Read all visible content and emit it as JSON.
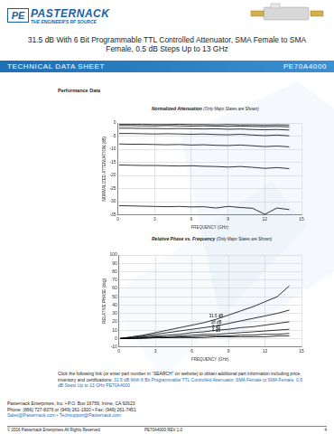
{
  "header": {
    "logo_mark": "PE",
    "logo_name": "PASTERNACK",
    "tagline": "THE ENGINEER'S RF SOURCE",
    "title": "31.5 dB With 6 Bit Programmable TTL Controlled Attenuator, SMA Female to SMA Female, 0.5 dB Steps Up to 13 GHz"
  },
  "banner": {
    "left": "TECHNICAL DATA SHEET",
    "right": "PE70A4000"
  },
  "section": "Performance Data",
  "chart_data": [
    {
      "type": "line",
      "title": "Normalized Attenuation",
      "subtitle": "(Only Major States are Shown)",
      "x_label": "FREQUENCY (GHz)",
      "y_label": "NORMALIZED ATTENUATION (dB)",
      "x": [
        0.1,
        1,
        2,
        3,
        4,
        5,
        6,
        7,
        8,
        9,
        10,
        11,
        12,
        13,
        14
      ],
      "xlim": [
        0,
        15
      ],
      "xticks": [
        0,
        3,
        6,
        9,
        12,
        15
      ],
      "ylim": [
        -35,
        0
      ],
      "yticks": [
        0,
        -5,
        -10,
        -15,
        -20,
        -25,
        -30,
        -35
      ],
      "grid": true,
      "color": "#000000",
      "series": [
        {
          "values": [
            -0.5,
            -0.5,
            -0.5,
            -0.6,
            -0.6,
            -0.5,
            -0.6,
            -0.6,
            -0.7,
            -0.6,
            -0.7,
            -0.7,
            -0.8,
            -0.7,
            -0.8
          ]
        },
        {
          "values": [
            -1,
            -1,
            -1.1,
            -1.1,
            -1,
            -1.1,
            -1.2,
            -1.1,
            -1.2,
            -1.3,
            -1.2,
            -1.3,
            -1.4,
            -1.3,
            -1.5
          ]
        },
        {
          "values": [
            -2,
            -2,
            -2.1,
            -2.1,
            -2.2,
            -2.1,
            -2.2,
            -2.3,
            -2.2,
            -2.4,
            -2.3,
            -2.5,
            -2.6,
            -2.5,
            -2.7
          ]
        },
        {
          "values": [
            -4,
            -4,
            -4.1,
            -4.2,
            -4.1,
            -4.2,
            -4.3,
            -4.2,
            -4.4,
            -4.5,
            -4.3,
            -4.6,
            -4.8,
            -4.6,
            -4.9
          ]
        },
        {
          "values": [
            -8,
            -8.1,
            -8.1,
            -8.2,
            -8.3,
            -8.2,
            -8.4,
            -8.3,
            -8.5,
            -8.6,
            -8.4,
            -8.7,
            -9,
            -8.8,
            -9.1
          ]
        },
        {
          "values": [
            -16,
            -16.1,
            -16.2,
            -16.2,
            -16.3,
            -16.4,
            -16.3,
            -16.5,
            -16.6,
            -16.8,
            -16.6,
            -16.9,
            -17.3,
            -17,
            -17.4
          ]
        },
        {
          "values": [
            -31.5,
            -31.6,
            -31.7,
            -31.8,
            -31.9,
            -31.8,
            -32,
            -31.9,
            -32.4,
            -31.8,
            -32.2,
            -32.5,
            -34.8,
            -32.4,
            -33
          ]
        }
      ]
    },
    {
      "type": "line",
      "title": "Relative Phase vs. Frequency",
      "subtitle": "(Only Major States are Shown)",
      "x_label": "FREQUENCY (GHz)",
      "y_label": "RELATIVE PHASE (deg)",
      "x": [
        0.1,
        1,
        2,
        3,
        4,
        5,
        6,
        7,
        8,
        9,
        10,
        11,
        12,
        13,
        14
      ],
      "xlim": [
        0,
        15
      ],
      "xticks": [
        0,
        3,
        6,
        9,
        12,
        15
      ],
      "ylim": [
        -10,
        100
      ],
      "yticks": [
        -10,
        0,
        10,
        20,
        30,
        40,
        50,
        60,
        70,
        80,
        90,
        100
      ],
      "grid": true,
      "color": "#000000",
      "series": [
        {
          "name": "31.5 dB",
          "values": [
            0,
            2,
            4,
            7,
            10,
            13,
            16,
            19,
            23,
            28,
            33,
            38,
            44,
            50,
            63
          ]
        },
        {
          "name": "16 dB",
          "values": [
            0,
            1,
            3,
            5,
            7,
            9,
            11,
            13,
            15,
            18,
            21,
            24,
            27,
            30,
            34
          ]
        },
        {
          "name": "8 dB",
          "values": [
            0,
            1,
            2,
            3,
            4,
            5,
            7,
            8,
            10,
            11,
            13,
            14,
            16,
            18,
            20
          ]
        },
        {
          "name": "4 dB",
          "values": [
            0,
            0,
            1,
            2,
            2,
            3,
            4,
            5,
            5,
            6,
            7,
            8,
            9,
            10,
            11
          ]
        },
        {
          "values": [
            0,
            0,
            1,
            1,
            1,
            2,
            2,
            3,
            3,
            3,
            4,
            4,
            5,
            5,
            6
          ]
        },
        {
          "values": [
            0,
            0,
            0,
            1,
            1,
            1,
            1,
            1,
            2,
            2,
            2,
            2,
            2,
            3,
            3
          ]
        }
      ]
    }
  ],
  "footer": {
    "link_intro": "Click the following link (or enter part number in “SEARCH” on website) to obtain additional part information including price, inventory and certifications:",
    "link_text": "31.5 dB With 6 Bit Programmable TTL Controlled Attenuator, SMA Female to SMA Female, 0.5 dB Steps Up to 13 GHz PE70A4000",
    "address": [
      "Pasternack Enterprises, Inc. • P.O. Box 16759, Irvine, CA 92623",
      "Phone: (866) 727-8376 or (949) 261-1920 • Fax: (949) 261-7451",
      "Sales@Pasternack.com • Techsupport@Pasternack.com"
    ],
    "copyright": "© 2016 Pasternack Enterprises All Rights Reserved",
    "revision": "PE70A4000 REV 1.0",
    "page": "4"
  }
}
